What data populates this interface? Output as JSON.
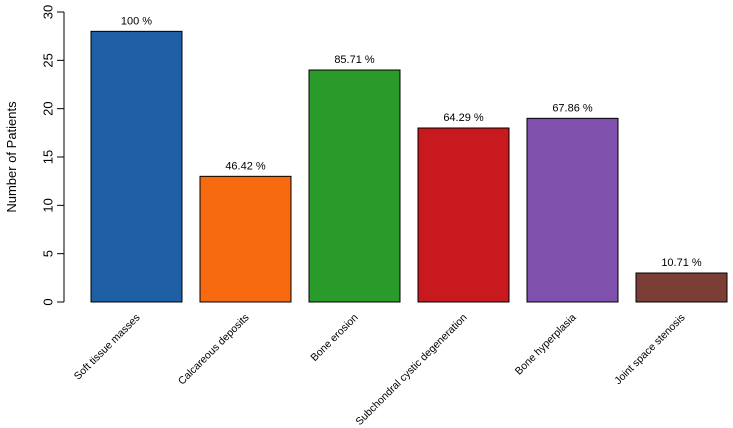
{
  "chart_data": {
    "type": "bar",
    "title": "",
    "xlabel": "",
    "ylabel": "Number of Patients",
    "ylim": [
      0,
      30
    ],
    "yticks": [
      0,
      5,
      10,
      15,
      20,
      25,
      30
    ],
    "grid": false,
    "categories": [
      "Soft tissue masses",
      "Calcareous deposits",
      "Bone erosion",
      "Subchondral cystic degeneration",
      "Bone hyperplasia",
      "Joint space stenosis"
    ],
    "values": [
      28,
      13,
      24,
      18,
      19,
      3
    ],
    "data_labels": [
      "100 %",
      "46.42 %",
      "85.71 %",
      "64.29 %",
      "67.86 %",
      "10.71 %"
    ],
    "colors": [
      "#1f5fa6",
      "#f86a10",
      "#2a9a2a",
      "#c81a1e",
      "#7f50ac",
      "#7a3e36"
    ]
  }
}
